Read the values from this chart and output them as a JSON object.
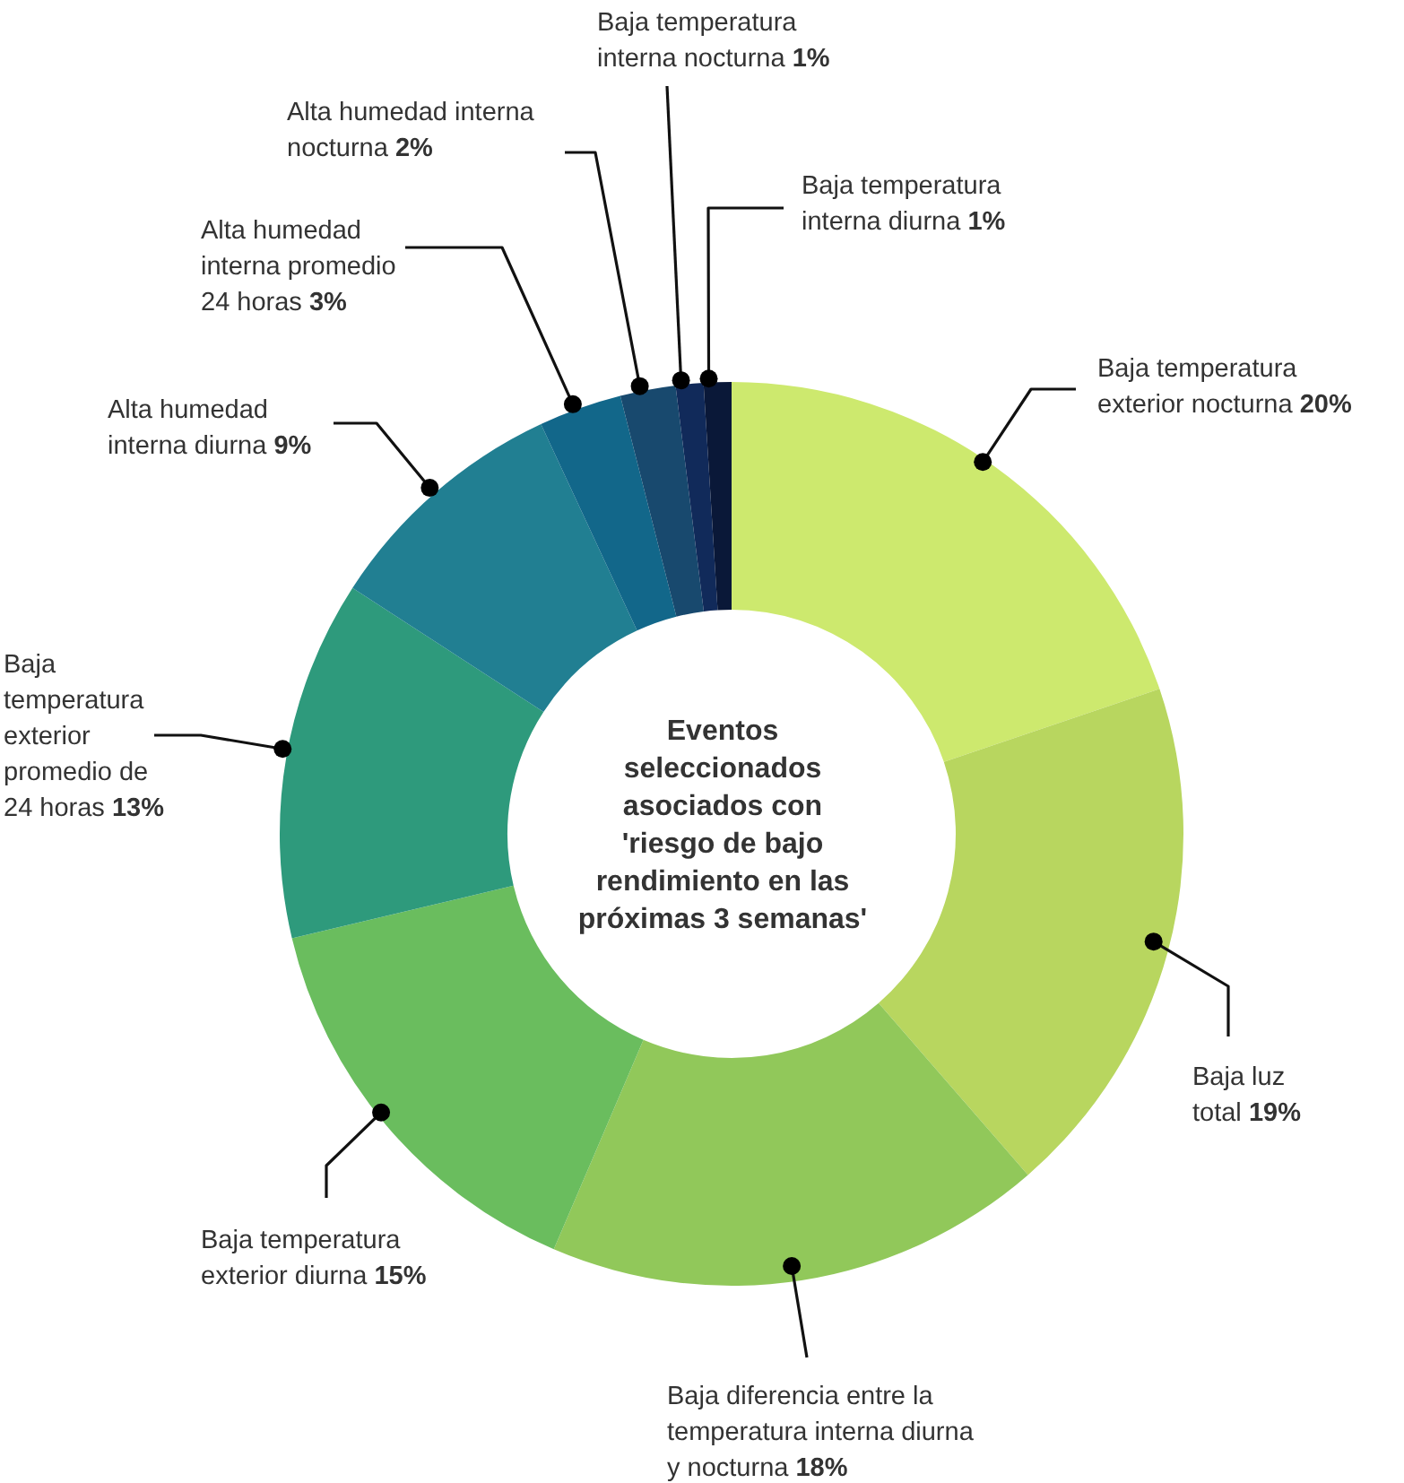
{
  "chart_data": {
    "type": "donut",
    "title": "Eventos seleccionados asociados con 'riesgo de bajo rendimiento en las próximas 3 semanas'",
    "categories": [
      "Baja temperatura exterior nocturna",
      "Baja luz total",
      "Baja diferencia entre la temperatura interna diurna y nocturna",
      "Baja temperatura exterior diurna",
      "Baja temperatura exterior promedio de 24 horas",
      "Alta humedad interna diurna",
      "Alta humedad interna promedio 24 horas",
      "Alta humedad interna nocturna",
      "Baja temperatura interna nocturna",
      "Baja temperatura interna diurna"
    ],
    "values": [
      20,
      19,
      18,
      15,
      13,
      9,
      3,
      2,
      1,
      1
    ],
    "value_labels": [
      "20%",
      "19%",
      "18%",
      "15%",
      "13%",
      "9%",
      "3%",
      "2%",
      "1%",
      "1%"
    ],
    "colors": [
      "#cde96e",
      "#b8d65f",
      "#91c85a",
      "#6abd5e",
      "#2e9a7c",
      "#217f92",
      "#12678a",
      "#18496e",
      "#112a5a",
      "#0a1838"
    ]
  }
}
